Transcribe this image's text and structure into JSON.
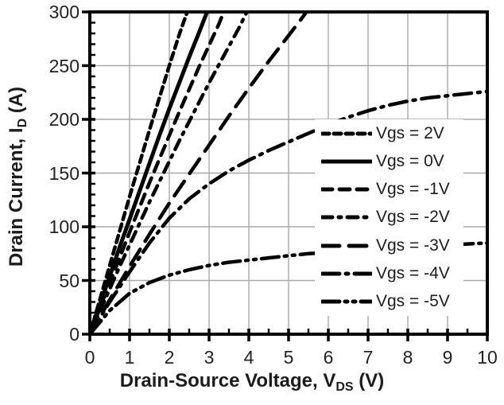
{
  "chart_data": {
    "type": "line",
    "title": "",
    "xlabel": {
      "pre": "Drain-Source Voltage, V",
      "sub": "DS",
      "post": " (V)"
    },
    "ylabel": {
      "pre": "Drain Current, I",
      "sub": "D",
      "post": " (A)"
    },
    "xlim": [
      0,
      10
    ],
    "ylim": [
      0,
      300
    ],
    "x_tick_labels": [
      "0",
      "1",
      "2",
      "3",
      "4",
      "5",
      "6",
      "7",
      "8",
      "9",
      "10"
    ],
    "y_tick_labels": [
      "0",
      "50",
      "100",
      "150",
      "200",
      "250",
      "300"
    ],
    "x_major_step": 1,
    "x_minor_step": 0.5,
    "y_major_step": 50,
    "y_minor_step": 10,
    "grid": true,
    "legend_position": "overlay-right-middle",
    "colors": {
      "curve": "#000000",
      "grid": "#a8a8a8",
      "axis": "#000000",
      "text": "#222222",
      "legend_background": "#ffffff",
      "background": "#ffffff"
    },
    "series": [
      {
        "name": "Vgs = 2V",
        "dash": [
          9,
          6
        ],
        "width": 4.5,
        "points": [
          [
            0,
            0
          ],
          [
            0.25,
            32
          ],
          [
            0.5,
            64
          ],
          [
            0.75,
            96
          ],
          [
            1.0,
            128
          ],
          [
            1.25,
            159
          ],
          [
            1.5,
            190
          ],
          [
            1.75,
            220
          ],
          [
            2.0,
            250
          ],
          [
            2.25,
            279
          ],
          [
            2.45,
            300
          ]
        ]
      },
      {
        "name": "Vgs = 0V",
        "dash": [],
        "width": 5,
        "points": [
          [
            0,
            0
          ],
          [
            0.25,
            27
          ],
          [
            0.5,
            54
          ],
          [
            0.75,
            81
          ],
          [
            1.0,
            107
          ],
          [
            1.25,
            133
          ],
          [
            1.5,
            159
          ],
          [
            1.75,
            185
          ],
          [
            2.0,
            210
          ],
          [
            2.25,
            234
          ],
          [
            2.5,
            258
          ],
          [
            2.75,
            281
          ],
          [
            2.95,
            300
          ]
        ]
      },
      {
        "name": "Vgs = -1V",
        "dash": [
          13,
          9
        ],
        "width": 4.5,
        "points": [
          [
            0,
            0
          ],
          [
            0.25,
            24
          ],
          [
            0.5,
            48
          ],
          [
            0.75,
            71
          ],
          [
            1.0,
            95
          ],
          [
            1.25,
            118
          ],
          [
            1.5,
            141
          ],
          [
            1.75,
            163
          ],
          [
            2.0,
            185
          ],
          [
            2.25,
            207
          ],
          [
            2.5,
            228
          ],
          [
            2.75,
            249
          ],
          [
            3.0,
            269
          ],
          [
            3.25,
            289
          ],
          [
            3.37,
            300
          ]
        ]
      },
      {
        "name": "Vgs = -2V",
        "dash": [
          13,
          8,
          3,
          8
        ],
        "width": 4.5,
        "points": [
          [
            0,
            0
          ],
          [
            0.25,
            21
          ],
          [
            0.5,
            42
          ],
          [
            0.75,
            63
          ],
          [
            1.0,
            83
          ],
          [
            1.25,
            103
          ],
          [
            1.5,
            123
          ],
          [
            1.75,
            142
          ],
          [
            2.0,
            161
          ],
          [
            2.25,
            180
          ],
          [
            2.5,
            198
          ],
          [
            2.75,
            216
          ],
          [
            3.0,
            234
          ],
          [
            3.25,
            251
          ],
          [
            3.5,
            268
          ],
          [
            3.75,
            285
          ],
          [
            3.95,
            300
          ]
        ]
      },
      {
        "name": "Vgs = -3V",
        "dash": [
          22,
          12
        ],
        "width": 4.5,
        "points": [
          [
            0,
            0
          ],
          [
            0.5,
            32
          ],
          [
            1.0,
            63
          ],
          [
            1.5,
            93
          ],
          [
            2.0,
            122
          ],
          [
            2.5,
            149
          ],
          [
            3.0,
            176
          ],
          [
            3.5,
            203
          ],
          [
            4.0,
            229
          ],
          [
            4.5,
            254
          ],
          [
            5.0,
            278
          ],
          [
            5.25,
            290
          ],
          [
            5.45,
            300
          ]
        ]
      },
      {
        "name": "Vgs = -4V",
        "dash": [
          22,
          8,
          3,
          8
        ],
        "width": 4.5,
        "points": [
          [
            0,
            0
          ],
          [
            0.5,
            30
          ],
          [
            1.0,
            58
          ],
          [
            1.5,
            85
          ],
          [
            2.0,
            108
          ],
          [
            2.5,
            126
          ],
          [
            3.0,
            140
          ],
          [
            3.5,
            152
          ],
          [
            4.0,
            162
          ],
          [
            4.5,
            171
          ],
          [
            5.0,
            179
          ],
          [
            5.5,
            187
          ],
          [
            6.0,
            195
          ],
          [
            6.5,
            202
          ],
          [
            7.0,
            208
          ],
          [
            7.5,
            213
          ],
          [
            8.0,
            217
          ],
          [
            8.5,
            220
          ],
          [
            9.0,
            222
          ],
          [
            9.5,
            224
          ],
          [
            10.0,
            226
          ]
        ]
      },
      {
        "name": "Vgs = -5V",
        "dash": [
          22,
          7,
          3,
          7,
          3,
          7
        ],
        "width": 4.5,
        "points": [
          [
            0,
            0
          ],
          [
            0.5,
            22
          ],
          [
            1.0,
            38
          ],
          [
            1.5,
            48
          ],
          [
            2.0,
            55
          ],
          [
            2.5,
            60
          ],
          [
            3.0,
            64
          ],
          [
            3.5,
            67
          ],
          [
            4.0,
            69
          ],
          [
            4.5,
            71
          ],
          [
            5.0,
            73
          ],
          [
            5.5,
            75
          ],
          [
            6.0,
            76
          ],
          [
            6.5,
            78
          ],
          [
            7.0,
            79
          ],
          [
            7.5,
            80
          ],
          [
            8.0,
            81
          ],
          [
            8.5,
            82
          ],
          [
            9.0,
            83
          ],
          [
            9.5,
            84
          ],
          [
            10.0,
            85
          ]
        ]
      }
    ]
  }
}
